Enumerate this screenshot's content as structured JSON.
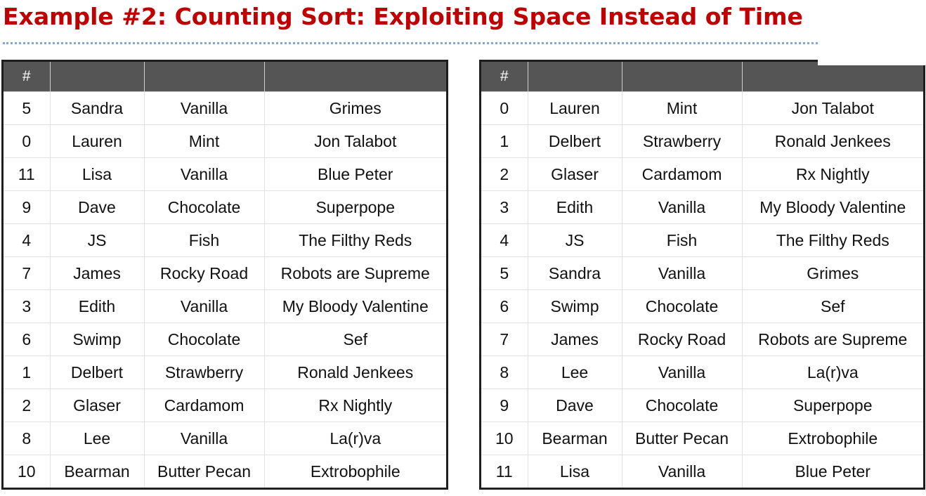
{
  "title": "Example #2: Counting Sort: Exploiting Space Instead of Time",
  "colors": {
    "title": "#c00000",
    "header_bg": "#555555",
    "border": "#1e1e1e",
    "rule": "#7fa9d4"
  },
  "tables": [
    {
      "headers": [
        "#",
        "",
        "",
        ""
      ],
      "rows": [
        [
          "5",
          "Sandra",
          "Vanilla",
          "Grimes"
        ],
        [
          "0",
          "Lauren",
          "Mint",
          "Jon Talabot"
        ],
        [
          "11",
          "Lisa",
          "Vanilla",
          "Blue Peter"
        ],
        [
          "9",
          "Dave",
          "Chocolate",
          "Superpope"
        ],
        [
          "4",
          "JS",
          "Fish",
          "The Filthy Reds"
        ],
        [
          "7",
          "James",
          "Rocky Road",
          "Robots are Supreme"
        ],
        [
          "3",
          "Edith",
          "Vanilla",
          "My Bloody Valentine"
        ],
        [
          "6",
          "Swimp",
          "Chocolate",
          "Sef"
        ],
        [
          "1",
          "Delbert",
          "Strawberry",
          "Ronald Jenkees"
        ],
        [
          "2",
          "Glaser",
          "Cardamom",
          "Rx Nightly"
        ],
        [
          "8",
          "Lee",
          "Vanilla",
          "La(r)va"
        ],
        [
          "10",
          "Bearman",
          "Butter Pecan",
          "Extrobophile"
        ]
      ]
    },
    {
      "headers": [
        "#",
        "",
        "",
        ""
      ],
      "rows": [
        [
          "0",
          "Lauren",
          "Mint",
          "Jon Talabot"
        ],
        [
          "1",
          "Delbert",
          "Strawberry",
          "Ronald Jenkees"
        ],
        [
          "2",
          "Glaser",
          "Cardamom",
          "Rx Nightly"
        ],
        [
          "3",
          "Edith",
          "Vanilla",
          "My Bloody Valentine"
        ],
        [
          "4",
          "JS",
          "Fish",
          "The Filthy Reds"
        ],
        [
          "5",
          "Sandra",
          "Vanilla",
          "Grimes"
        ],
        [
          "6",
          "Swimp",
          "Chocolate",
          "Sef"
        ],
        [
          "7",
          "James",
          "Rocky Road",
          "Robots are Supreme"
        ],
        [
          "8",
          "Lee",
          "Vanilla",
          "La(r)va"
        ],
        [
          "9",
          "Dave",
          "Chocolate",
          "Superpope"
        ],
        [
          "10",
          "Bearman",
          "Butter Pecan",
          "Extrobophile"
        ],
        [
          "11",
          "Lisa",
          "Vanilla",
          "Blue Peter"
        ]
      ]
    }
  ]
}
